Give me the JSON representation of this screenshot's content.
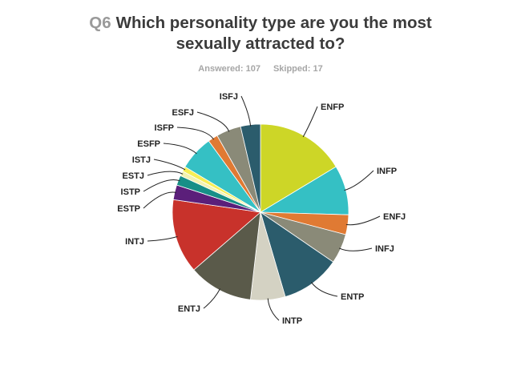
{
  "header": {
    "question_number": "Q6",
    "title_line1": "Which personality type are you the most",
    "title_line2": "sexually attracted to?",
    "answered": "Answered: 107",
    "skipped": "Skipped: 17"
  },
  "chart_data": {
    "type": "pie",
    "title": "Which personality type are you the most sexually attracted to?",
    "start_angle_deg": 0,
    "direction": "clockwise",
    "slices": [
      {
        "label": "ENFP",
        "value": 16.82,
        "color": "#cdd627"
      },
      {
        "label": "INFP",
        "value": 9.35,
        "color": "#35c0c4"
      },
      {
        "label": "ENFJ",
        "value": 3.74,
        "color": "#e07a33"
      },
      {
        "label": "INFJ",
        "value": 5.61,
        "color": "#8a8a78"
      },
      {
        "label": "ENTP",
        "value": 11.21,
        "color": "#2b5c6c"
      },
      {
        "label": "INTP",
        "value": 6.54,
        "color": "#d4d2c3"
      },
      {
        "label": "ENTJ",
        "value": 12.15,
        "color": "#5a5a4a"
      },
      {
        "label": "INTJ",
        "value": 14.02,
        "color": "#c8322b"
      },
      {
        "label": "ESTP",
        "value": 2.8,
        "color": "#5b1f7a"
      },
      {
        "label": "ISTP",
        "value": 1.87,
        "color": "#178f87"
      },
      {
        "label": "ESTJ",
        "value": 0.93,
        "color": "#f2f2b0"
      },
      {
        "label": "ISTJ",
        "value": 0.93,
        "color": "#f6ee55"
      },
      {
        "label": "ESFP",
        "value": 6.54,
        "color": "#35c0c4"
      },
      {
        "label": "ISFP",
        "value": 1.87,
        "color": "#e07a33"
      },
      {
        "label": "ESFJ",
        "value": 4.67,
        "color": "#8a8a78"
      },
      {
        "label": "ISFJ",
        "value": 3.74,
        "color": "#2b5c6c"
      }
    ]
  }
}
